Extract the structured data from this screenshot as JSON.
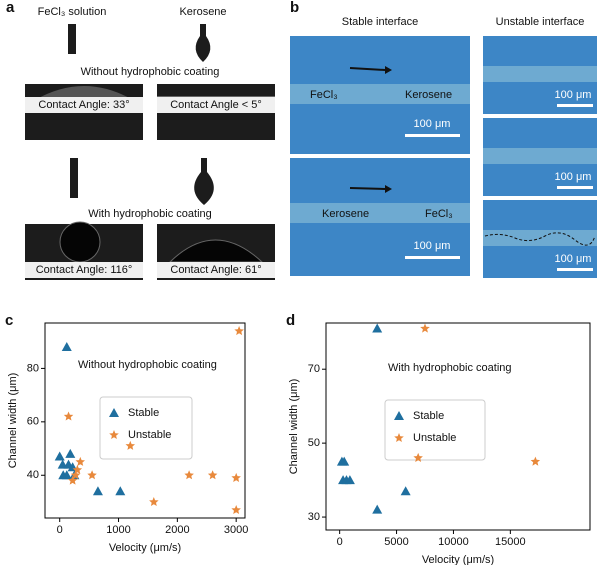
{
  "panel_a": {
    "label": "a",
    "fluid_labels": [
      "FeCl₃ solution",
      "Kerosene"
    ],
    "conditions": [
      "Without hydrophobic coating",
      "With hydrophobic coating"
    ],
    "contact_angles": [
      "Contact Angle: 33°",
      "Contact Angle < 5°",
      "Contact Angle: 116°",
      "Contact Angle: 61°"
    ]
  },
  "panel_b": {
    "label": "b",
    "headers": [
      "Stable interface",
      "Unstable interface"
    ],
    "fluid_labels": [
      "FeCl₃",
      "Kerosene",
      "Kerosene",
      "FeCl₃"
    ],
    "scale_bars": [
      "100 μm",
      "100 μm",
      "100 μm",
      "100 μm",
      "100 μm"
    ]
  },
  "chart_data": [
    {
      "type": "scatter",
      "label": "c",
      "annotation": "Without hydrophobic coating",
      "x_label": "Velocity (μm/s)",
      "y_label": "Channel width (μm)",
      "xlim": [
        -250,
        3150
      ],
      "ylim": [
        24,
        97
      ],
      "xticks": [
        0,
        1000,
        2000,
        3000
      ],
      "yticks": [
        40,
        60,
        80
      ],
      "series": [
        {
          "name": "Stable",
          "color": "#1f6f9f",
          "marker": "triangle",
          "x": [
            0,
            50,
            60,
            120,
            150,
            180,
            220,
            250,
            650,
            1030,
            120
          ],
          "values": [
            47,
            44,
            40,
            40,
            44,
            48,
            43,
            40,
            34,
            34,
            88
          ]
        },
        {
          "name": "Unstable",
          "color": "#e8893c",
          "marker": "star",
          "x": [
            150,
            220,
            270,
            300,
            350,
            550,
            1200,
            1600,
            2200,
            2600,
            3000,
            3000,
            3050
          ],
          "values": [
            62,
            38,
            40,
            42,
            45,
            40,
            51,
            30,
            40,
            40,
            39,
            27,
            94
          ]
        }
      ]
    },
    {
      "type": "scatter",
      "label": "d",
      "annotation": "With hydrophobic coating",
      "x_label": "Velocity (μm/s)",
      "y_label": "Channel width (μm)",
      "xlim": [
        -1200,
        22000
      ],
      "ylim": [
        26.5,
        82.5
      ],
      "xticks": [
        0,
        5000,
        10000,
        15000
      ],
      "yticks": [
        30,
        50,
        70
      ],
      "series": [
        {
          "name": "Stable",
          "color": "#1f6f9f",
          "marker": "triangle",
          "x": [
            3300,
            200,
            400,
            300,
            600,
            900,
            3300,
            5800
          ],
          "values": [
            81,
            45,
            45,
            40,
            40,
            40,
            32,
            37
          ]
        },
        {
          "name": "Unstable",
          "color": "#e8893c",
          "marker": "star",
          "x": [
            7500,
            6900,
            17200
          ],
          "values": [
            81,
            46,
            45
          ]
        }
      ]
    }
  ]
}
